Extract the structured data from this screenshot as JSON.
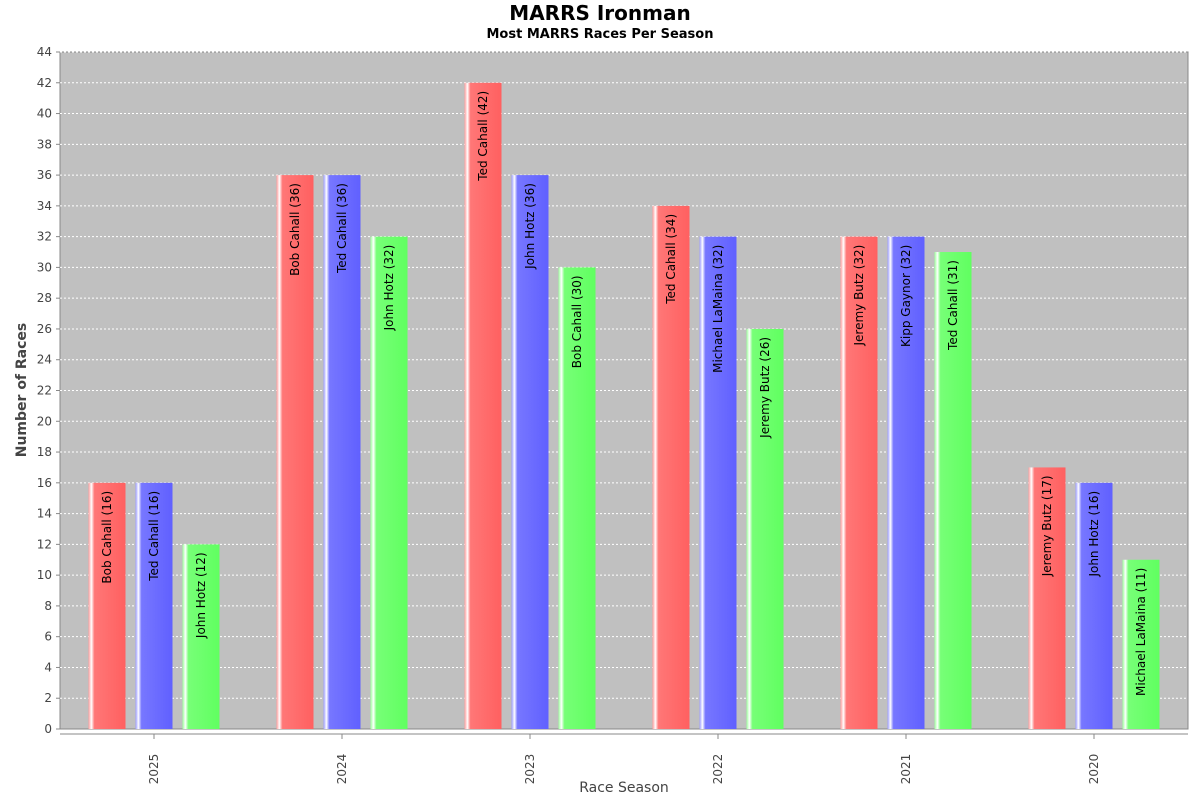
{
  "chart_data": {
    "type": "bar",
    "title": "MARRS Ironman",
    "subtitle": "Most MARRS Races Per Season",
    "xlabel": "Race Season",
    "ylabel": "Number of Races",
    "ylim": [
      0,
      44
    ],
    "ytick_step": 2,
    "grid": true,
    "legend": "none",
    "categories": [
      "2025",
      "2024",
      "2023",
      "2022",
      "2021",
      "2020"
    ],
    "series_colors": [
      "#ff6666",
      "#6666ff",
      "#66ff66"
    ],
    "plot_background": "#c0c0c0",
    "groups": [
      {
        "category": "2025",
        "bars": [
          {
            "label": "Bob Cahall (16)",
            "value": 16
          },
          {
            "label": "Ted Cahall (16)",
            "value": 16
          },
          {
            "label": "John Hotz (12)",
            "value": 12
          }
        ]
      },
      {
        "category": "2024",
        "bars": [
          {
            "label": "Bob Cahall (36)",
            "value": 36
          },
          {
            "label": "Ted Cahall (36)",
            "value": 36
          },
          {
            "label": "John Hotz (32)",
            "value": 32
          }
        ]
      },
      {
        "category": "2023",
        "bars": [
          {
            "label": "Ted Cahall (42)",
            "value": 42
          },
          {
            "label": "John Hotz (36)",
            "value": 36
          },
          {
            "label": "Bob Cahall (30)",
            "value": 30
          }
        ]
      },
      {
        "category": "2022",
        "bars": [
          {
            "label": "Ted Cahall (34)",
            "value": 34
          },
          {
            "label": "Michael LaMaina (32)",
            "value": 32
          },
          {
            "label": "Jeremy Butz (26)",
            "value": 26
          }
        ]
      },
      {
        "category": "2021",
        "bars": [
          {
            "label": "Jeremy Butz (32)",
            "value": 32
          },
          {
            "label": "Kipp Gaynor (32)",
            "value": 32
          },
          {
            "label": "Ted Cahall (31)",
            "value": 31
          }
        ]
      },
      {
        "category": "2020",
        "bars": [
          {
            "label": "Jeremy Butz (17)",
            "value": 17
          },
          {
            "label": "John Hotz (16)",
            "value": 16
          },
          {
            "label": "Michael LaMaina (11)",
            "value": 11
          }
        ]
      }
    ]
  }
}
